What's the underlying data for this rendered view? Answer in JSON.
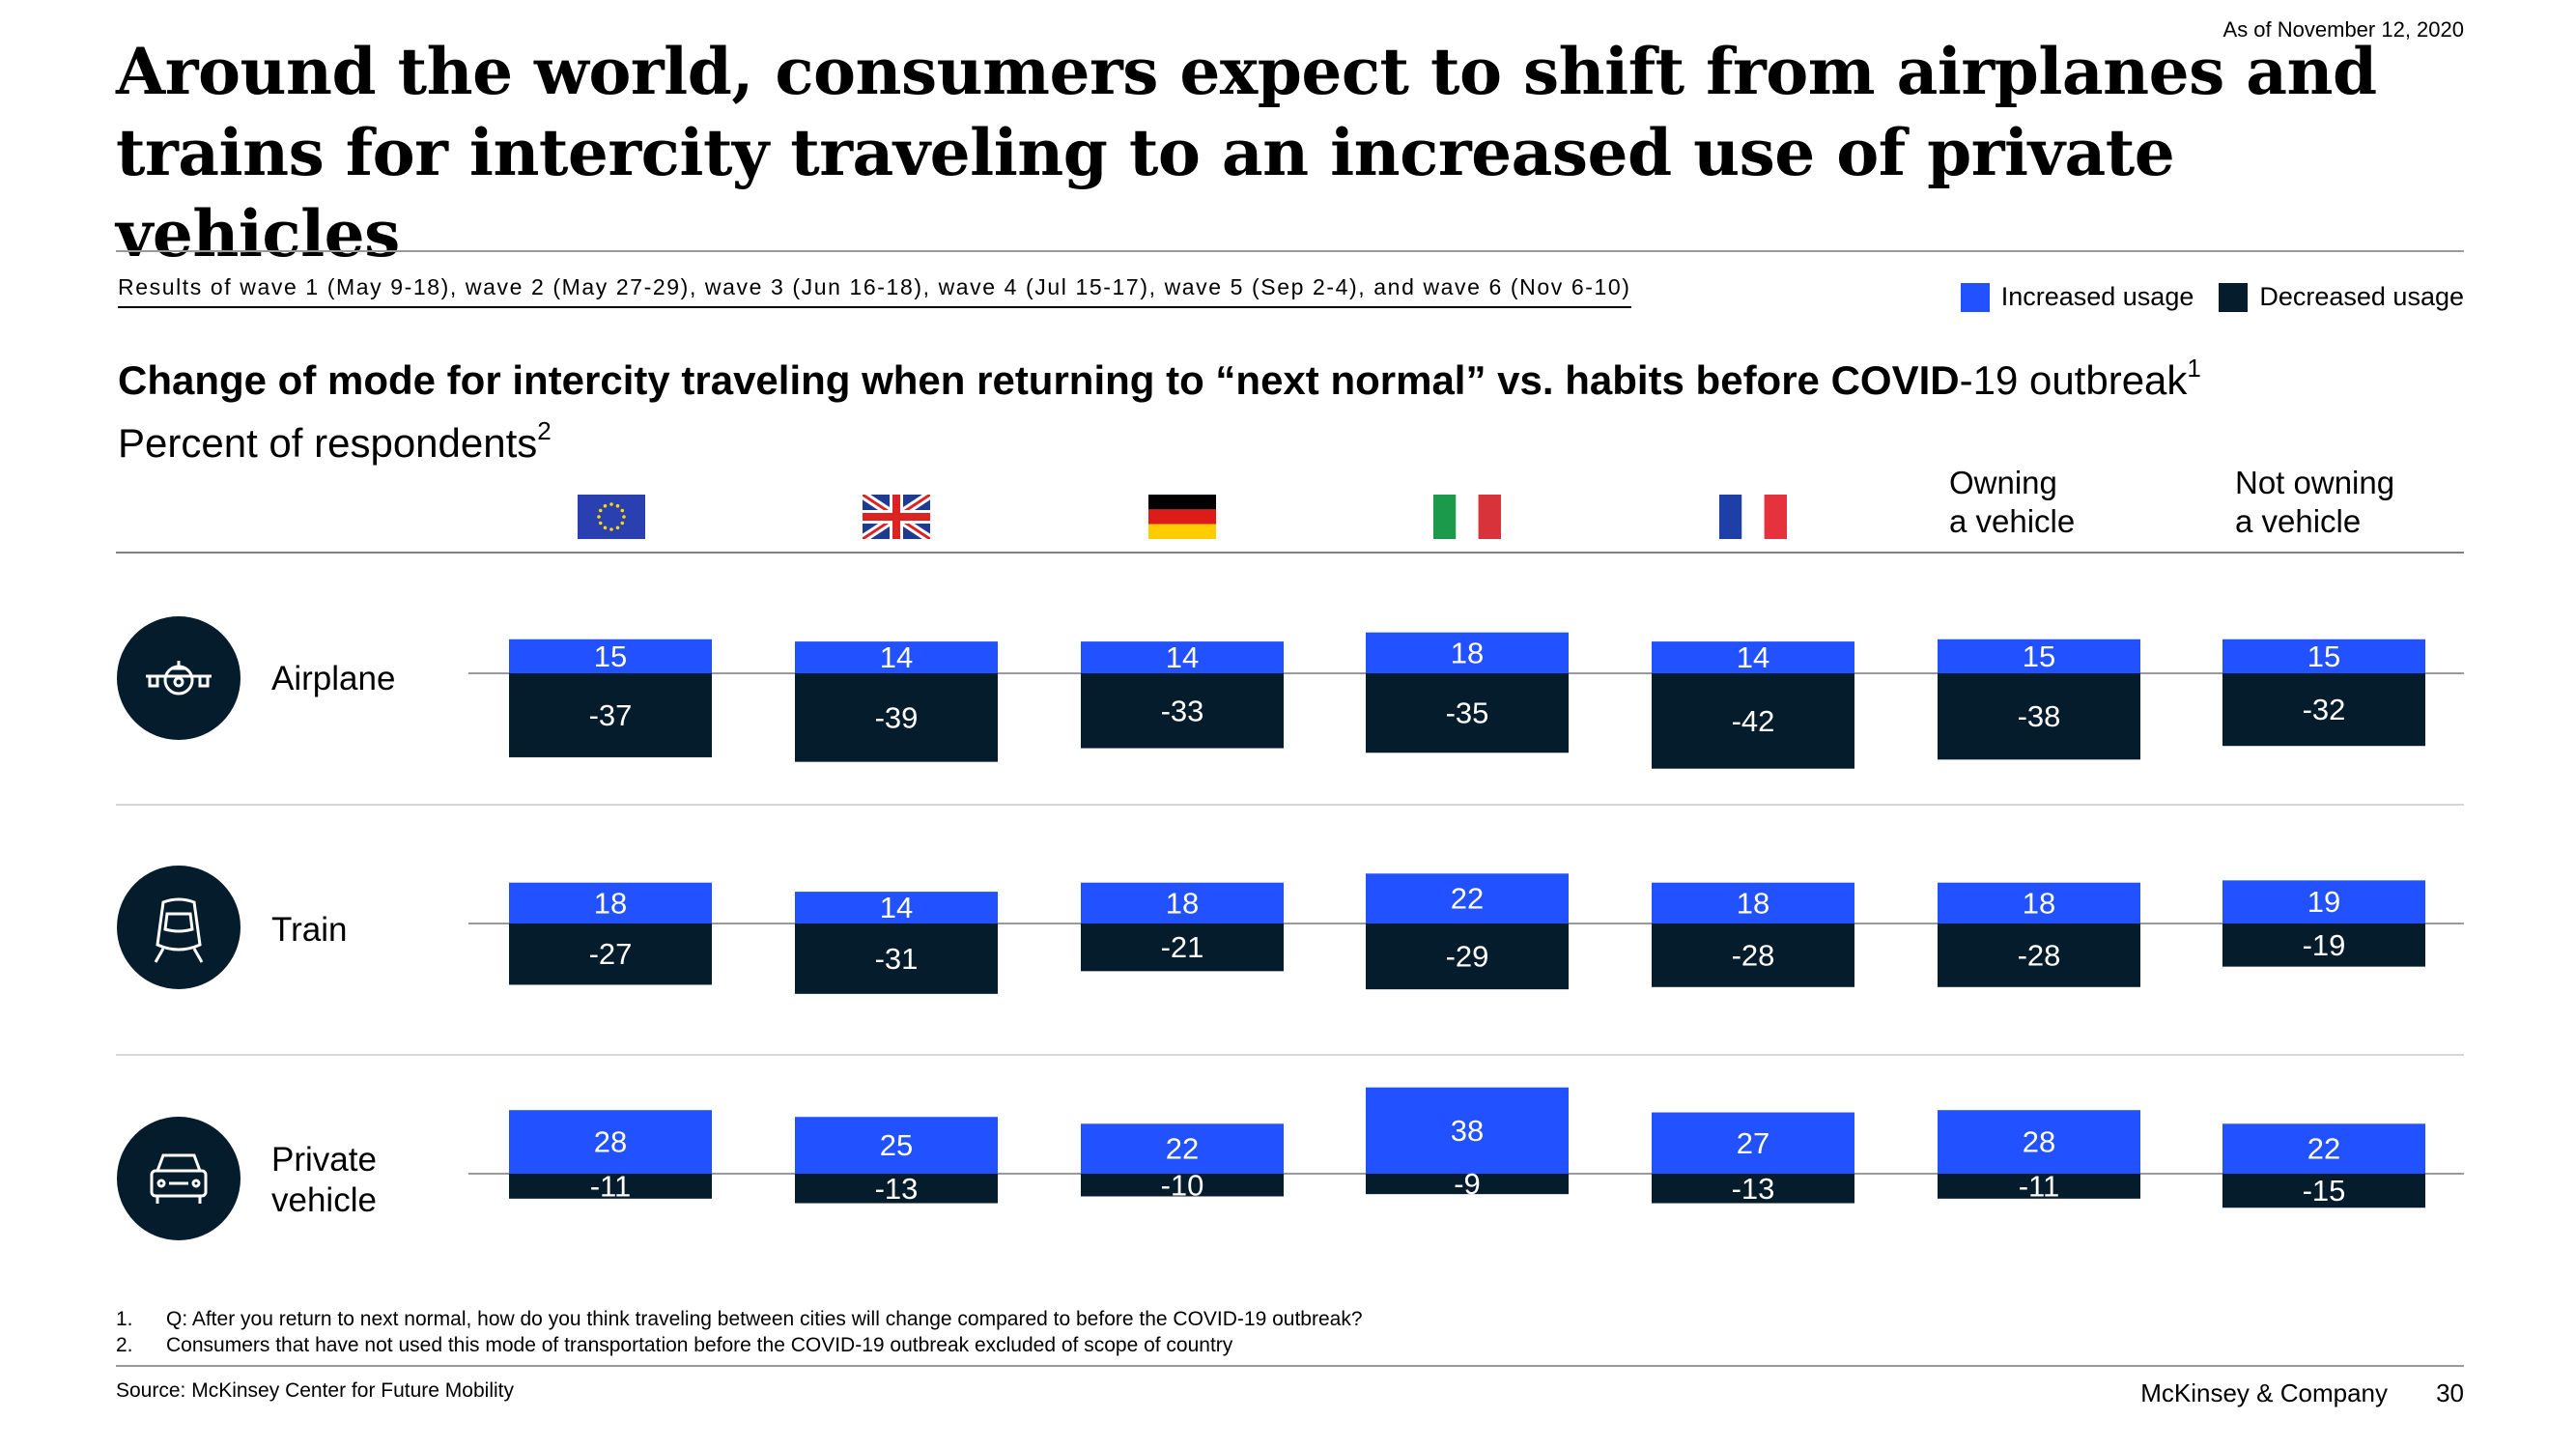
{
  "asof": "As of November 12, 2020",
  "title": "Around the world, consumers expect to shift from airplanes and trains for intercity traveling to an increased use of private vehicles",
  "subtitle": "Results of wave 1 (May 9-18), wave 2 (May 27-29), wave 3 (Jun 16-18), wave 4 (Jul 15-17), wave 5 (Sep 2-4), and wave 6 (Nov 6-10)",
  "legend": {
    "increased": "Increased usage",
    "decreased": "Decreased usage",
    "increased_color": "#2251ff",
    "decreased_color": "#051c2c"
  },
  "heading": {
    "bold": "Change of mode for intercity traveling when returning to “next normal” vs. habits before COVID",
    "normal": "-19 outbreak",
    "sup": "1",
    "unit": "Percent of respondents",
    "unit_sup": "2"
  },
  "columns": [
    {
      "flag": "eu-flag-icon"
    },
    {
      "flag": "uk-flag-icon"
    },
    {
      "flag": "germany-flag-icon"
    },
    {
      "flag": "italy-flag-icon"
    },
    {
      "flag": "france-flag-icon"
    },
    {
      "line1": "Owning",
      "line2": "a vehicle"
    },
    {
      "line1": "Not owning",
      "line2": "a vehicle"
    }
  ],
  "rows": [
    {
      "label": "Airplane",
      "icon": "airplane-icon"
    },
    {
      "label": "Train",
      "icon": "train-icon"
    },
    {
      "label1": "Private",
      "label2": "vehicle",
      "icon": "car-icon"
    }
  ],
  "chart_data": {
    "type": "bar",
    "categories": [
      "EU",
      "UK",
      "Germany",
      "Italy",
      "France",
      "Owning a vehicle",
      "Not owning a vehicle"
    ],
    "rows": [
      {
        "name": "Airplane",
        "increased": [
          15,
          14,
          14,
          18,
          14,
          15,
          15
        ],
        "decreased": [
          -37,
          -39,
          -33,
          -35,
          -42,
          -38,
          -32
        ]
      },
      {
        "name": "Train",
        "increased": [
          18,
          14,
          18,
          22,
          18,
          18,
          19
        ],
        "decreased": [
          -27,
          -31,
          -21,
          -29,
          -28,
          -28,
          -19
        ]
      },
      {
        "name": "Private vehicle",
        "increased": [
          28,
          25,
          22,
          38,
          27,
          28,
          22
        ],
        "decreased": [
          -11,
          -13,
          -10,
          -9,
          -13,
          -11,
          -15
        ]
      }
    ]
  },
  "footnotes": [
    {
      "n": "1.",
      "text": "Q: After you return to next normal, how do you think traveling between cities will change compared to before the COVID-19 outbreak?"
    },
    {
      "n": "2.",
      "text": "Consumers that have not used this mode of transportation before the COVID-19 outbreak excluded of scope of country"
    }
  ],
  "source": "Source: McKinsey Center for Future Mobility",
  "company": "McKinsey & Company",
  "page": "30"
}
